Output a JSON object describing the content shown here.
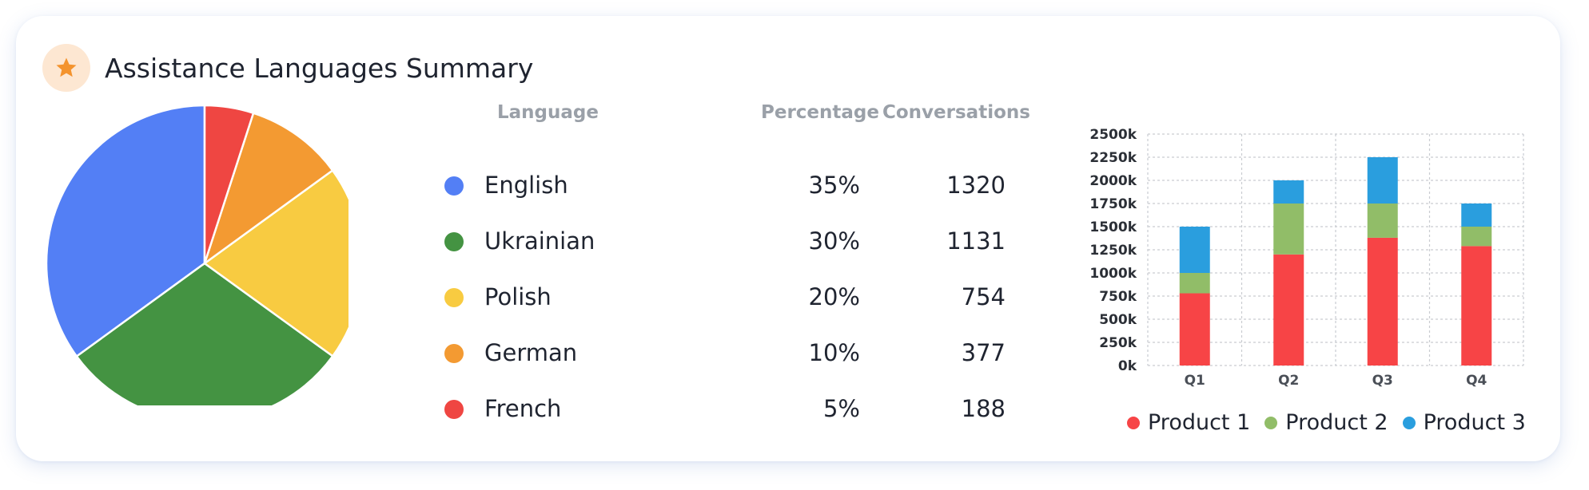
{
  "header": {
    "title": "Assistance Languages Summary",
    "icon": "star-icon"
  },
  "table": {
    "headers": {
      "language": "Language",
      "percentage": "Percentage",
      "conversations": "Conversations"
    },
    "rows": [
      {
        "language": "English",
        "percentage": "35%",
        "conversations": "1320",
        "color": "#537ff5"
      },
      {
        "language": "Ukrainian",
        "percentage": "30%",
        "conversations": "1131",
        "color": "#449342"
      },
      {
        "language": "Polish",
        "percentage": "20%",
        "conversations": "754",
        "color": "#f8cb41"
      },
      {
        "language": "German",
        "percentage": "10%",
        "conversations": "377",
        "color": "#f39a32"
      },
      {
        "language": "French",
        "percentage": "5%",
        "conversations": "188",
        "color": "#ef4642"
      }
    ]
  },
  "chart_data": [
    {
      "type": "pie",
      "labels": [
        "English",
        "Ukrainian",
        "Polish",
        "German",
        "French"
      ],
      "values": [
        1320,
        1131,
        754,
        377,
        188
      ],
      "colors": [
        "#537ff5",
        "#449342",
        "#f8cb41",
        "#f39a32",
        "#ef4642"
      ]
    },
    {
      "type": "bar",
      "stacked": true,
      "categories": [
        "Q1",
        "Q2",
        "Q3",
        "Q4"
      ],
      "series": [
        {
          "name": "Product 1",
          "values": [
            780,
            1200,
            1380,
            1290
          ],
          "color": "#f74446"
        },
        {
          "name": "Product 2",
          "values": [
            220,
            550,
            370,
            210
          ],
          "color": "#91bd68"
        },
        {
          "name": "Product 3",
          "values": [
            500,
            250,
            500,
            250
          ],
          "color": "#2a9ede"
        }
      ],
      "yticks": [
        "0k",
        "250k",
        "500k",
        "750k",
        "1000k",
        "1250k",
        "1500k",
        "1750k",
        "2000k",
        "2250k",
        "2500k"
      ],
      "ylim": [
        0,
        2500
      ],
      "grid": true,
      "legend": "bottom"
    }
  ]
}
